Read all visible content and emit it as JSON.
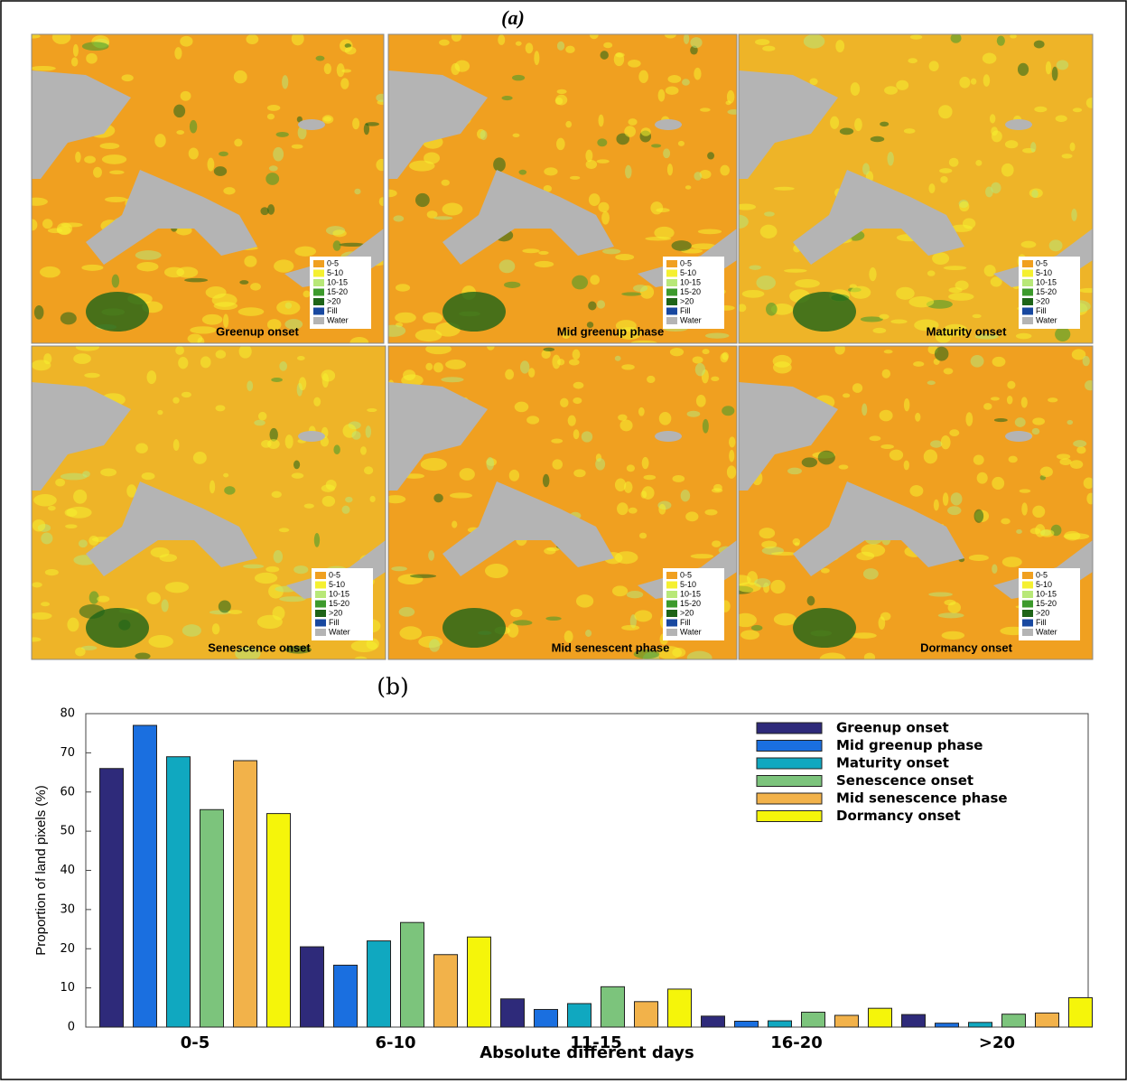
{
  "panel_a": {
    "label": "(a)",
    "maps": [
      "Greenup onset",
      "Mid greenup phase",
      "Maturity onset",
      "Senescence onset",
      "Mid senescent phase",
      "Dormancy onset"
    ],
    "legend": [
      {
        "label": "0-5",
        "color": "#f0a020"
      },
      {
        "label": "5-10",
        "color": "#f5f030"
      },
      {
        "label": "10-15",
        "color": "#b8e878"
      },
      {
        "label": "15-20",
        "color": "#3c9a2c"
      },
      {
        "label": ">20",
        "color": "#1e6418"
      },
      {
        "label": "Fill",
        "color": "#1848a0"
      },
      {
        "label": "Water",
        "color": "#b4b4b4"
      }
    ]
  },
  "chart_data": {
    "type": "bar",
    "label": "(b)",
    "x_label": "Absolute different days",
    "y_label": "Proportion of land pixels (%)",
    "categories": [
      "0-5",
      "6-10",
      "11-15",
      "16-20",
      ">20"
    ],
    "series": [
      {
        "name": "Greenup onset",
        "color": "#2e2a7a",
        "values": [
          66,
          20.5,
          7.2,
          2.8,
          3.2
        ]
      },
      {
        "name": "Mid greenup phase",
        "color": "#1a6fe0",
        "values": [
          77,
          15.8,
          4.5,
          1.5,
          1
        ]
      },
      {
        "name": "Maturity onset",
        "color": "#10a8c0",
        "values": [
          69,
          22,
          6,
          1.6,
          1.2
        ]
      },
      {
        "name": "Senescence onset",
        "color": "#7cc47c",
        "values": [
          55.5,
          26.7,
          10.3,
          3.8,
          3.3
        ]
      },
      {
        "name": "Mid senescence phase",
        "color": "#f2b24a",
        "values": [
          68,
          18.5,
          6.5,
          3,
          3.6
        ]
      },
      {
        "name": "Dormancy onset",
        "color": "#f5f50a",
        "values": [
          54.5,
          23,
          9.7,
          4.8,
          7.5
        ]
      }
    ],
    "ylim": [
      0,
      80
    ],
    "yticks": [
      0,
      10,
      20,
      30,
      40,
      50,
      60,
      70,
      80
    ],
    "grid": false,
    "legend": "upper right"
  }
}
